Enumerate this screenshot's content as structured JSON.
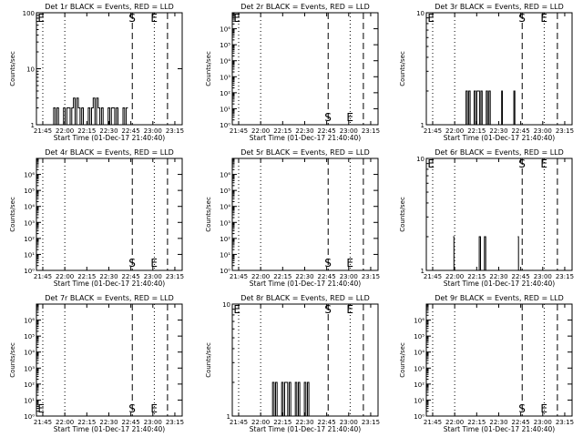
{
  "chart_data": [
    {
      "type": "line",
      "title": "Det 1r BLACK = Events, RED = LLD",
      "xlabel": "Start Time (01-Dec-17 21:40:40)",
      "ylabel": "Counts/sec",
      "yscale": "log",
      "ylim": [
        1,
        100
      ],
      "yticks": [
        {
          "v": 1,
          "label": "1"
        },
        {
          "v": 10,
          "label": "10"
        },
        {
          "v": 100,
          "label": "100"
        }
      ],
      "xticks": [
        "21:45",
        "22:00",
        "22:15",
        "22:30",
        "22:45",
        "23:00",
        "23:15"
      ],
      "markers": [
        {
          "label": "E",
          "t": "21:44"
        },
        {
          "label": "S",
          "t": "22:46"
        },
        {
          "label": "E",
          "t": "23:01"
        }
      ],
      "series": [
        {
          "segments": [
            {
              "t0": "21:49",
              "t1": "22:43",
              "levels": [
                1,
                2,
                1,
                2,
                2,
                3,
                2,
                1,
                2,
                3,
                2,
                1,
                2,
                2,
                1,
                2
              ]
            }
          ]
        }
      ]
    },
    {
      "type": "line",
      "title": "Det 2r BLACK = Events, RED = LLD",
      "xlabel": "Start Time (01-Dec-17 21:40:40)",
      "ylabel": "Counts/sec",
      "yscale": "log",
      "ylim": [
        1,
        10000000
      ],
      "yticks": [
        {
          "v": 1,
          "label": "10⁰"
        },
        {
          "v": 10,
          "label": "10¹"
        },
        {
          "v": 100,
          "label": "10²"
        },
        {
          "v": 1000,
          "label": "10³"
        },
        {
          "v": 10000,
          "label": "10⁴"
        },
        {
          "v": 100000,
          "label": "10⁵"
        },
        {
          "v": 1000000,
          "label": "10⁶"
        }
      ],
      "xticks": [
        "21:45",
        "22:00",
        "22:15",
        "22:30",
        "22:45",
        "23:00",
        "23:15"
      ],
      "markers": [
        {
          "label": "E",
          "t": "21:44"
        },
        {
          "label": "S",
          "t": "22:46"
        },
        {
          "label": "E",
          "t": "23:01"
        }
      ],
      "series": []
    },
    {
      "type": "line",
      "title": "Det 3r BLACK = Events, RED = LLD",
      "xlabel": "Start Time (01-Dec-17 21:40:40)",
      "ylabel": "Counts/sec",
      "yscale": "log",
      "ylim": [
        1,
        10
      ],
      "yticks": [
        {
          "v": 1,
          "label": "1"
        },
        {
          "v": 10,
          "label": "10"
        }
      ],
      "xticks": [
        "21:45",
        "22:00",
        "22:15",
        "22:30",
        "22:45",
        "23:00",
        "23:15"
      ],
      "markers": [
        {
          "label": "E",
          "t": "21:44"
        },
        {
          "label": "S",
          "t": "22:46"
        },
        {
          "label": "E",
          "t": "23:01"
        }
      ],
      "series": [
        {
          "segments": [
            {
              "t0": "22:05",
              "t1": "22:27",
              "levels": [
                1,
                2,
                1,
                2,
                2,
                1,
                2,
                1
              ]
            },
            {
              "t0": "22:31",
              "t1": "22:33",
              "levels": [
                1,
                2
              ]
            },
            {
              "t0": "22:39",
              "t1": "22:43",
              "levels": [
                1,
                2,
                1
              ]
            }
          ]
        }
      ]
    },
    {
      "type": "line",
      "title": "Det 4r BLACK = Events, RED = LLD",
      "xlabel": "Start Time (01-Dec-17 21:40:40)",
      "ylabel": "Counts/sec",
      "yscale": "log",
      "ylim": [
        1,
        10000000
      ],
      "yticks": [
        {
          "v": 1,
          "label": "10⁰"
        },
        {
          "v": 10,
          "label": "10¹"
        },
        {
          "v": 100,
          "label": "10²"
        },
        {
          "v": 1000,
          "label": "10³"
        },
        {
          "v": 10000,
          "label": "10⁴"
        },
        {
          "v": 100000,
          "label": "10⁵"
        },
        {
          "v": 1000000,
          "label": "10⁶"
        }
      ],
      "xticks": [
        "21:45",
        "22:00",
        "22:15",
        "22:30",
        "22:45",
        "23:00",
        "23:15"
      ],
      "markers": [
        {
          "label": "S",
          "t": "22:46"
        },
        {
          "label": "E",
          "t": "23:01"
        }
      ],
      "series": []
    },
    {
      "type": "line",
      "title": "Det 5r BLACK = Events, RED = LLD",
      "xlabel": "Start Time (01-Dec-17 21:40:40)",
      "ylabel": "Counts/sec",
      "yscale": "log",
      "ylim": [
        1,
        10000000
      ],
      "yticks": [
        {
          "v": 1,
          "label": "10⁰"
        },
        {
          "v": 10,
          "label": "10¹"
        },
        {
          "v": 100,
          "label": "10²"
        },
        {
          "v": 1000,
          "label": "10³"
        },
        {
          "v": 10000,
          "label": "10⁴"
        },
        {
          "v": 100000,
          "label": "10⁵"
        },
        {
          "v": 1000000,
          "label": "10⁶"
        }
      ],
      "xticks": [
        "21:45",
        "22:00",
        "22:15",
        "22:30",
        "22:45",
        "23:00",
        "23:15"
      ],
      "markers": [
        {
          "label": "S",
          "t": "22:46"
        },
        {
          "label": "E",
          "t": "23:01"
        }
      ],
      "series": []
    },
    {
      "type": "line",
      "title": "Det 6r BLACK = Events, RED = LLD",
      "xlabel": "Start Time (01-Dec-17 21:40:40)",
      "ylabel": "Counts/sec",
      "yscale": "log",
      "ylim": [
        1,
        10
      ],
      "yticks": [
        {
          "v": 1,
          "label": "1"
        },
        {
          "v": 10,
          "label": "10"
        }
      ],
      "xticks": [
        "21:45",
        "22:00",
        "22:15",
        "22:30",
        "22:45",
        "23:00",
        "23:15"
      ],
      "markers": [
        {
          "label": "E",
          "t": "21:44"
        },
        {
          "label": "S",
          "t": "22:46"
        },
        {
          "label": "E",
          "t": "23:01"
        }
      ],
      "series": [
        {
          "segments": [
            {
              "t0": "21:59",
              "t1": "22:00",
              "levels": [
                2
              ]
            },
            {
              "t0": "22:15",
              "t1": "22:22",
              "levels": [
                1,
                2,
                1,
                2
              ]
            },
            {
              "t0": "22:43",
              "t1": "22:44",
              "levels": [
                2
              ]
            }
          ]
        }
      ]
    },
    {
      "type": "line",
      "title": "Det 7r BLACK = Events, RED = LLD",
      "xlabel": "Start Time (01-Dec-17 21:40:40)",
      "ylabel": "Counts/sec",
      "yscale": "log",
      "ylim": [
        1,
        10000000
      ],
      "yticks": [
        {
          "v": 1,
          "label": "10⁰"
        },
        {
          "v": 10,
          "label": "10¹"
        },
        {
          "v": 100,
          "label": "10²"
        },
        {
          "v": 1000,
          "label": "10³"
        },
        {
          "v": 10000,
          "label": "10⁴"
        },
        {
          "v": 100000,
          "label": "10⁵"
        },
        {
          "v": 1000000,
          "label": "10⁶"
        }
      ],
      "xticks": [
        "21:45",
        "22:00",
        "22:15",
        "22:30",
        "22:45",
        "23:00",
        "23:15"
      ],
      "markers": [
        {
          "label": "E",
          "t": "21:44"
        },
        {
          "label": "S",
          "t": "22:46"
        },
        {
          "label": "E",
          "t": "23:01"
        }
      ],
      "series": []
    },
    {
      "type": "line",
      "title": "Det 8r BLACK = Events, RED = LLD",
      "xlabel": "Start Time (01-Dec-17 21:40:40)",
      "ylabel": "Counts/sec",
      "yscale": "log",
      "ylim": [
        1,
        10
      ],
      "yticks": [
        {
          "v": 1,
          "label": "1"
        },
        {
          "v": 10,
          "label": "10"
        }
      ],
      "xticks": [
        "21:45",
        "22:00",
        "22:15",
        "22:30",
        "22:45",
        "23:00",
        "23:15"
      ],
      "markers": [
        {
          "label": "E",
          "t": "21:44"
        },
        {
          "label": "S",
          "t": "22:46"
        },
        {
          "label": "E",
          "t": "23:01"
        }
      ],
      "series": [
        {
          "segments": [
            {
              "t0": "22:05",
              "t1": "22:36",
              "levels": [
                1,
                2,
                1,
                2,
                2,
                1,
                2,
                1,
                2,
                1
              ]
            }
          ]
        }
      ]
    },
    {
      "type": "line",
      "title": "Det 9r BLACK = Events, RED = LLD",
      "xlabel": "Start Time (01-Dec-17 21:40:40)",
      "ylabel": "Counts/sec",
      "yscale": "log",
      "ylim": [
        1,
        10000000
      ],
      "yticks": [
        {
          "v": 1,
          "label": "10⁰"
        },
        {
          "v": 10,
          "label": "10¹"
        },
        {
          "v": 100,
          "label": "10²"
        },
        {
          "v": 1000,
          "label": "10³"
        },
        {
          "v": 10000,
          "label": "10⁴"
        },
        {
          "v": 100000,
          "label": "10⁵"
        },
        {
          "v": 1000000,
          "label": "10⁶"
        }
      ],
      "xticks": [
        "21:45",
        "22:00",
        "22:15",
        "22:30",
        "22:45",
        "23:00",
        "23:15"
      ],
      "markers": [
        {
          "label": "S",
          "t": "22:46"
        },
        {
          "label": "E",
          "t": "23:01"
        }
      ],
      "series": []
    }
  ]
}
